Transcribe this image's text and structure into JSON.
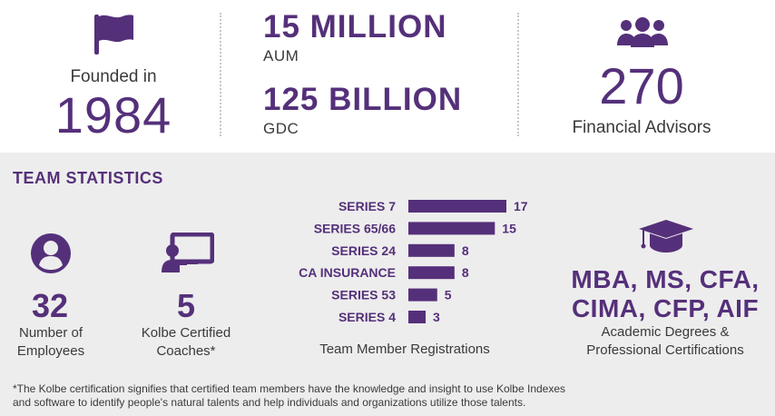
{
  "colors": {
    "accent": "#55307a",
    "text": "#3a3a3a",
    "panel": "#ededed"
  },
  "top": {
    "founded": {
      "label": "Founded in",
      "year": "1984",
      "icon": "flag-icon"
    },
    "aum": {
      "value": "15 MILLION",
      "label": "AUM"
    },
    "gdc": {
      "value": "125 BILLION",
      "label": "GDC"
    },
    "advisors": {
      "value": "270",
      "label": "Financial Advisors",
      "icon": "people-group-icon"
    }
  },
  "team": {
    "title": "TEAM STATISTICS",
    "employees": {
      "value": "32",
      "label_line1": "Number of",
      "label_line2": "Employees",
      "icon": "user-circle-icon"
    },
    "coaches": {
      "value": "5",
      "label_line1": "Kolbe Certified",
      "label_line2": "Coaches*",
      "icon": "teacher-board-icon"
    },
    "registrations_caption": "Team Member Registrations",
    "degrees": {
      "line1": "MBA, MS, CFA,",
      "line2": "CIMA, CFP, AIF",
      "label_line1": "Academic Degrees &",
      "label_line2": "Professional Certifications",
      "icon": "graduation-cap-icon"
    }
  },
  "chart_data": {
    "type": "bar",
    "orientation": "horizontal",
    "categories": [
      "SERIES 7",
      "SERIES 65/66",
      "SERIES 24",
      "CA INSURANCE",
      "SERIES 53",
      "SERIES 4"
    ],
    "values": [
      17,
      15,
      8,
      8,
      5,
      3
    ],
    "xlabel": "Team Member Registrations",
    "title": "",
    "ylabel": ""
  },
  "footnote": {
    "line1": "*The Kolbe certification signifies that certified team members have the knowledge and insight to use Kolbe Indexes",
    "line2": "and software to identify people's natural talents and help individuals and organizations utilize those talents."
  }
}
